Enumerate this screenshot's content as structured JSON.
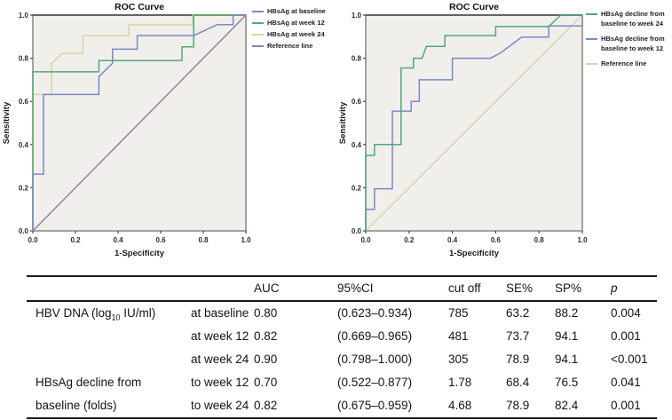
{
  "chart_data": [
    {
      "type": "line",
      "title": "ROC Curve",
      "xlabel": "1-Specificity",
      "ylabel": "Sensitivity",
      "xlim": [
        0,
        1
      ],
      "ylim": [
        0,
        1
      ],
      "xticks": [
        "0.0",
        "0.2",
        "0.4",
        "0.6",
        "0.8",
        "1.0"
      ],
      "yticks": [
        "0.0",
        "0.2",
        "0.4",
        "0.6",
        "0.8",
        "1.0"
      ],
      "grid": false,
      "plot_bg": "#f0efec",
      "border_color": "#7e7e7e",
      "legend_position": "right",
      "series": [
        {
          "name": "HBsAg at baseline",
          "color": "#7b89c3",
          "points": [
            [
              0,
              0
            ],
            [
              0,
              0.263
            ],
            [
              0.05,
              0.263
            ],
            [
              0.05,
              0.632
            ],
            [
              0.31,
              0.632
            ],
            [
              0.31,
              0.715
            ],
            [
              0.374,
              0.777
            ],
            [
              0.374,
              0.842
            ],
            [
              0.49,
              0.842
            ],
            [
              0.49,
              0.905
            ],
            [
              0.755,
              0.905
            ],
            [
              0.866,
              0.956
            ],
            [
              0.94,
              0.956
            ],
            [
              0.94,
              1
            ],
            [
              1,
              1
            ]
          ]
        },
        {
          "name": "HBsAg at week 12",
          "color": "#53a877",
          "points": [
            [
              0,
              0
            ],
            [
              0,
              0.737
            ],
            [
              0.31,
              0.737
            ],
            [
              0.31,
              0.789
            ],
            [
              0.7,
              0.789
            ],
            [
              0.7,
              0.853
            ],
            [
              0.755,
              0.853
            ],
            [
              0.755,
              1
            ],
            [
              1,
              1
            ]
          ]
        },
        {
          "name": "HBsAg at week 24",
          "color": "#d8d5a2",
          "points": [
            [
              0,
              0
            ],
            [
              0,
              0.632
            ],
            [
              0.088,
              0.632
            ],
            [
              0.088,
              0.775
            ],
            [
              0.137,
              0.822
            ],
            [
              0.235,
              0.822
            ],
            [
              0.235,
              0.905
            ],
            [
              0.45,
              0.905
            ],
            [
              0.45,
              0.955
            ],
            [
              0.75,
              0.955
            ],
            [
              0.75,
              1
            ],
            [
              1,
              1
            ]
          ]
        },
        {
          "name": "Reference line",
          "color": "#a07ca6",
          "points": [
            [
              0,
              0
            ],
            [
              1,
              1
            ]
          ]
        }
      ]
    },
    {
      "type": "line",
      "title": "ROC Curve",
      "xlabel": "1-Specificity",
      "ylabel": "Sensitivity",
      "xlim": [
        0,
        1
      ],
      "ylim": [
        0,
        1
      ],
      "xticks": [
        "0.0",
        "0.2",
        "0.4",
        "0.6",
        "0.8",
        "1.0"
      ],
      "yticks": [
        "0.0",
        "0.2",
        "0.4",
        "0.6",
        "0.8",
        "1.0"
      ],
      "grid": false,
      "plot_bg": "#f0efec",
      "border_color": "#7e7e7e",
      "legend_position": "right",
      "series": [
        {
          "name": "HBsAg decline from baseline to week 24",
          "color": "#53a877",
          "points": [
            [
              0,
              0
            ],
            [
              0,
              0.35
            ],
            [
              0.04,
              0.35
            ],
            [
              0.04,
              0.4
            ],
            [
              0.163,
              0.4
            ],
            [
              0.163,
              0.755
            ],
            [
              0.22,
              0.755
            ],
            [
              0.22,
              0.8
            ],
            [
              0.26,
              0.8
            ],
            [
              0.28,
              0.855
            ],
            [
              0.365,
              0.855
            ],
            [
              0.365,
              0.905
            ],
            [
              0.6,
              0.905
            ],
            [
              0.6,
              0.947
            ],
            [
              0.845,
              0.947
            ],
            [
              0.9,
              1
            ],
            [
              1,
              1
            ]
          ]
        },
        {
          "name": "HBsAg decline from baseline to week 12",
          "color": "#7b89c3",
          "points": [
            [
              0,
              0
            ],
            [
              0,
              0.1
            ],
            [
              0.04,
              0.1
            ],
            [
              0.04,
              0.195
            ],
            [
              0.123,
              0.195
            ],
            [
              0.123,
              0.555
            ],
            [
              0.21,
              0.555
            ],
            [
              0.21,
              0.6
            ],
            [
              0.247,
              0.6
            ],
            [
              0.247,
              0.7
            ],
            [
              0.4,
              0.7
            ],
            [
              0.4,
              0.8
            ],
            [
              0.575,
              0.8
            ],
            [
              0.62,
              0.823
            ],
            [
              0.72,
              0.898
            ],
            [
              0.845,
              0.898
            ],
            [
              0.845,
              0.95
            ],
            [
              1,
              0.95
            ],
            [
              1,
              1
            ]
          ]
        },
        {
          "name": "Reference line",
          "color": "#d9d6a8",
          "points": [
            [
              0,
              0
            ],
            [
              1,
              1
            ]
          ]
        }
      ]
    }
  ],
  "table": {
    "headers": {
      "auc": "AUC",
      "ci": "95%CI",
      "cutoff": "cut off",
      "se": "SE%",
      "sp": "SP%",
      "p": "p"
    },
    "rows": [
      {
        "group_pre": "HBV DNA (log",
        "group_sub": "10",
        "group_post": " IU/ml)",
        "sub": "at baseline",
        "auc": "0.80",
        "ci": "(0.623–0.934)",
        "cutoff": "785",
        "se": "63.2",
        "sp": "88.2",
        "p": "0.004"
      },
      {
        "group_pre": "",
        "group_sub": "",
        "group_post": "",
        "sub": "at week 12",
        "auc": "0.82",
        "ci": "(0.669–0.965)",
        "cutoff": "481",
        "se": "73.7",
        "sp": "94.1",
        "p": "0.001"
      },
      {
        "group_pre": "",
        "group_sub": "",
        "group_post": "",
        "sub": "at week 24",
        "auc": "0.90",
        "ci": "(0.798–1.000)",
        "cutoff": "305",
        "se": "78.9",
        "sp": "94.1",
        "p": "<0.001"
      },
      {
        "group_pre": "HBsAg decline from",
        "group_sub": "",
        "group_post": "",
        "sub": "to week 12",
        "auc": "0.70",
        "ci": "(0.522–0.877)",
        "cutoff": "1.78",
        "se": "68.4",
        "sp": "76.5",
        "p": "0.041"
      },
      {
        "group_pre": "baseline (folds)",
        "group_sub": "",
        "group_post": "",
        "sub": "to week 24",
        "auc": "0.82",
        "ci": "(0.675–0.959)",
        "cutoff": "4.68",
        "se": "78.9",
        "sp": "82.4",
        "p": "0.001"
      }
    ]
  }
}
